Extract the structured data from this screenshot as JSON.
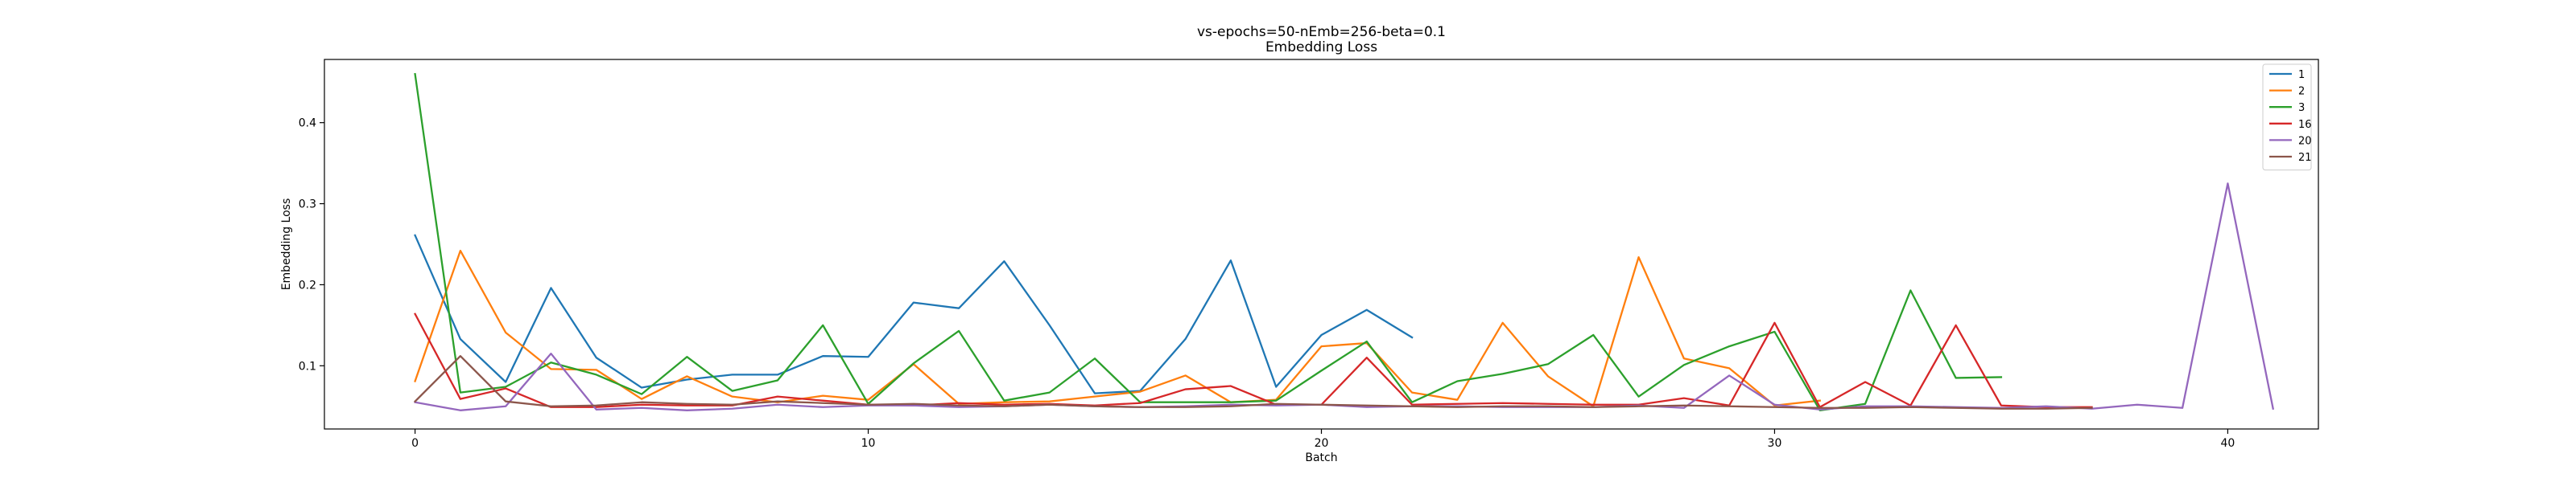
{
  "chart_data": {
    "type": "line",
    "title": "vs-epochs=50-nEmb=256-beta=0.1",
    "subtitle": "Embedding Loss",
    "xlabel": "Batch",
    "ylabel": "Embedding Loss",
    "xlim": [
      -2,
      42
    ],
    "ylim": [
      0.022,
      0.478
    ],
    "xticks": [
      0,
      10,
      20,
      30,
      40
    ],
    "yticks": [
      0.1,
      0.2,
      0.3,
      0.4
    ],
    "xtick_labels": [
      "0",
      "10",
      "20",
      "30",
      "40"
    ],
    "ytick_labels": [
      "0.1",
      "0.2",
      "0.3",
      "0.4"
    ],
    "grid": false,
    "legend_position": "top-right",
    "series": [
      {
        "name": "1",
        "color": "#1f77b4",
        "x": [
          0,
          1,
          2,
          3,
          4,
          5,
          6,
          7,
          8,
          9,
          10,
          11,
          12,
          13,
          14,
          15,
          16,
          17,
          18,
          19,
          20,
          21,
          22
        ],
        "y": [
          0.261,
          0.133,
          0.08,
          0.196,
          0.11,
          0.073,
          0.083,
          0.089,
          0.089,
          0.112,
          0.111,
          0.178,
          0.171,
          0.229,
          0.15,
          0.066,
          0.069,
          0.133,
          0.23,
          0.074,
          0.138,
          0.169,
          0.135
        ]
      },
      {
        "name": "2",
        "color": "#ff7f0e",
        "x": [
          0,
          1,
          2,
          3,
          4,
          5,
          6,
          7,
          8,
          9,
          10,
          11,
          12,
          13,
          14,
          15,
          16,
          17,
          18,
          19,
          20,
          21,
          22,
          23,
          24,
          25,
          26,
          27,
          28,
          29,
          30,
          31
        ],
        "y": [
          0.081,
          0.242,
          0.141,
          0.096,
          0.095,
          0.059,
          0.087,
          0.062,
          0.055,
          0.063,
          0.058,
          0.102,
          0.053,
          0.055,
          0.056,
          0.062,
          0.068,
          0.088,
          0.055,
          0.058,
          0.124,
          0.128,
          0.067,
          0.058,
          0.153,
          0.087,
          0.05,
          0.234,
          0.109,
          0.097,
          0.051,
          0.057
        ]
      },
      {
        "name": "3",
        "color": "#2ca02c",
        "x": [
          0,
          1,
          2,
          3,
          4,
          5,
          6,
          7,
          8,
          9,
          10,
          11,
          12,
          13,
          14,
          15,
          16,
          17,
          18,
          19,
          20,
          21,
          22,
          23,
          24,
          25,
          26,
          27,
          28,
          29,
          30,
          31,
          32,
          33,
          34,
          35
        ],
        "y": [
          0.46,
          0.067,
          0.074,
          0.104,
          0.089,
          0.065,
          0.111,
          0.069,
          0.082,
          0.15,
          0.053,
          0.103,
          0.143,
          0.057,
          0.067,
          0.109,
          0.055,
          0.055,
          0.055,
          0.057,
          0.094,
          0.13,
          0.055,
          0.081,
          0.09,
          0.102,
          0.138,
          0.062,
          0.101,
          0.124,
          0.142,
          0.045,
          0.053,
          0.193,
          0.085,
          0.086
        ]
      },
      {
        "name": "16",
        "color": "#d62728",
        "x": [
          0,
          1,
          2,
          3,
          4,
          5,
          6,
          7,
          8,
          9,
          10,
          11,
          12,
          13,
          14,
          15,
          16,
          17,
          18,
          19,
          20,
          21,
          22,
          23,
          24,
          25,
          26,
          27,
          28,
          29,
          30,
          31,
          32,
          33,
          34,
          35,
          36,
          37
        ],
        "y": [
          0.164,
          0.059,
          0.072,
          0.049,
          0.049,
          0.052,
          0.051,
          0.051,
          0.062,
          0.057,
          0.052,
          0.051,
          0.054,
          0.052,
          0.053,
          0.051,
          0.054,
          0.071,
          0.075,
          0.052,
          0.052,
          0.11,
          0.052,
          0.053,
          0.054,
          0.053,
          0.052,
          0.052,
          0.06,
          0.051,
          0.153,
          0.049,
          0.08,
          0.051,
          0.15,
          0.051,
          0.049,
          0.049
        ]
      },
      {
        "name": "20",
        "color": "#9467bd",
        "x": [
          0,
          1,
          2,
          3,
          4,
          5,
          6,
          7,
          8,
          9,
          10,
          11,
          12,
          13,
          14,
          15,
          16,
          17,
          18,
          19,
          20,
          21,
          22,
          23,
          24,
          25,
          26,
          27,
          28,
          29,
          30,
          31,
          32,
          33,
          34,
          35,
          36,
          37,
          38,
          39,
          40,
          41
        ],
        "y": [
          0.055,
          0.045,
          0.05,
          0.115,
          0.046,
          0.048,
          0.045,
          0.047,
          0.052,
          0.049,
          0.051,
          0.051,
          0.049,
          0.05,
          0.052,
          0.05,
          0.049,
          0.05,
          0.052,
          0.051,
          0.052,
          0.049,
          0.05,
          0.05,
          0.049,
          0.049,
          0.049,
          0.051,
          0.048,
          0.088,
          0.052,
          0.046,
          0.05,
          0.05,
          0.049,
          0.048,
          0.05,
          0.047,
          0.052,
          0.048,
          0.325,
          0.047
        ]
      },
      {
        "name": "21",
        "color": "#8c564b",
        "x": [
          0,
          1,
          2,
          3,
          4,
          5,
          6,
          7,
          8,
          9,
          10,
          11,
          12,
          13,
          14,
          15,
          16,
          17,
          18,
          19,
          20,
          21,
          22,
          23,
          24,
          25,
          26,
          27,
          28,
          29,
          30,
          31,
          32,
          33,
          34,
          35,
          36,
          37
        ],
        "y": [
          0.056,
          0.112,
          0.056,
          0.05,
          0.051,
          0.055,
          0.053,
          0.052,
          0.056,
          0.054,
          0.052,
          0.053,
          0.051,
          0.05,
          0.052,
          0.05,
          0.049,
          0.049,
          0.05,
          0.053,
          0.052,
          0.051,
          0.05,
          0.049,
          0.05,
          0.05,
          0.049,
          0.05,
          0.051,
          0.05,
          0.049,
          0.048,
          0.048,
          0.049,
          0.048,
          0.047,
          0.047,
          0.048
        ]
      }
    ]
  }
}
